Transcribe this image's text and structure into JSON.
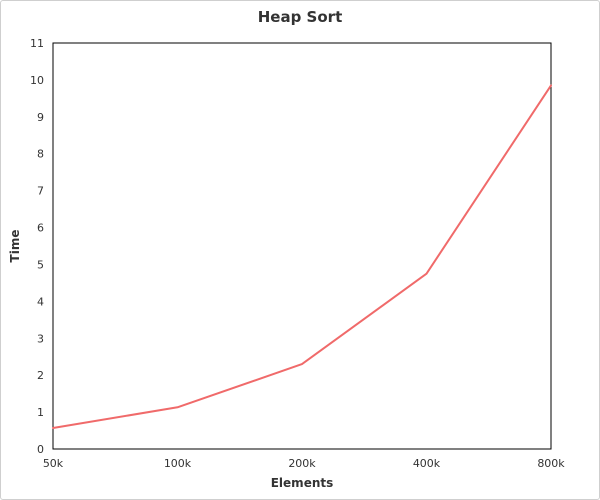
{
  "chart_data": {
    "type": "line",
    "title": "Heap Sort",
    "xlabel": "Elements",
    "ylabel": "Time",
    "categories": [
      "50k",
      "100k",
      "200k",
      "400k",
      "800k"
    ],
    "series": [
      {
        "values": [
          0.57,
          1.13,
          2.3,
          4.75,
          9.85
        ]
      }
    ],
    "ylim": [
      0,
      11
    ],
    "yticks": [
      "0",
      "1",
      "2",
      "3",
      "4",
      "5",
      "6",
      "7",
      "8",
      "9",
      "10",
      "11"
    ],
    "grid": false,
    "legend": "none",
    "colors": {
      "line": "#f06a6a",
      "axis": "#000000",
      "text": "#333333"
    }
  }
}
